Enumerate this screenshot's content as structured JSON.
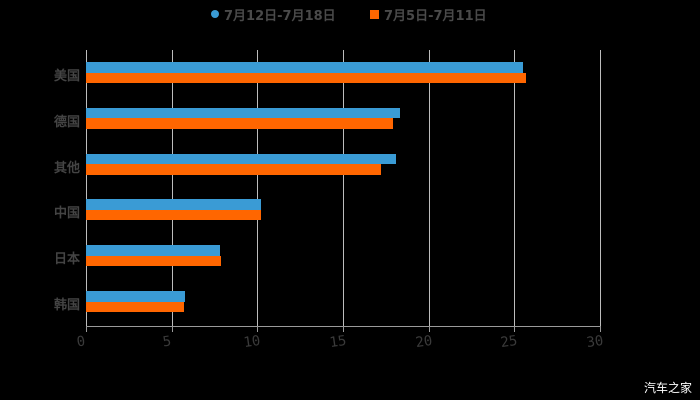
{
  "legend": [
    {
      "label": "7月12日-7月18日",
      "color": "#3a9bd5",
      "marker": "circle"
    },
    {
      "label": "7月5日-7月11日",
      "color": "#ff6600",
      "marker": "square"
    }
  ],
  "watermark": "汽车之家",
  "chart_data": {
    "type": "bar",
    "orientation": "horizontal",
    "title": "",
    "xlabel": "",
    "ylabel": "",
    "categories": [
      "美国",
      "德国",
      "其他",
      "中国",
      "日本",
      "韩国"
    ],
    "series": [
      {
        "name": "7月12日-7月18日",
        "color": "#3a9bd5",
        "values": [
          25.5,
          18.3,
          18.1,
          10.2,
          7.8,
          5.8
        ]
      },
      {
        "name": "7月5日-7月11日",
        "color": "#ff6600",
        "values": [
          25.7,
          17.9,
          17.2,
          10.2,
          7.9,
          5.7
        ]
      }
    ],
    "xlim": [
      0,
      30
    ],
    "xticks": [
      "0",
      "5",
      "10",
      "15",
      "20",
      "25",
      "30"
    ],
    "grid": "vertical",
    "legend_position": "top"
  }
}
